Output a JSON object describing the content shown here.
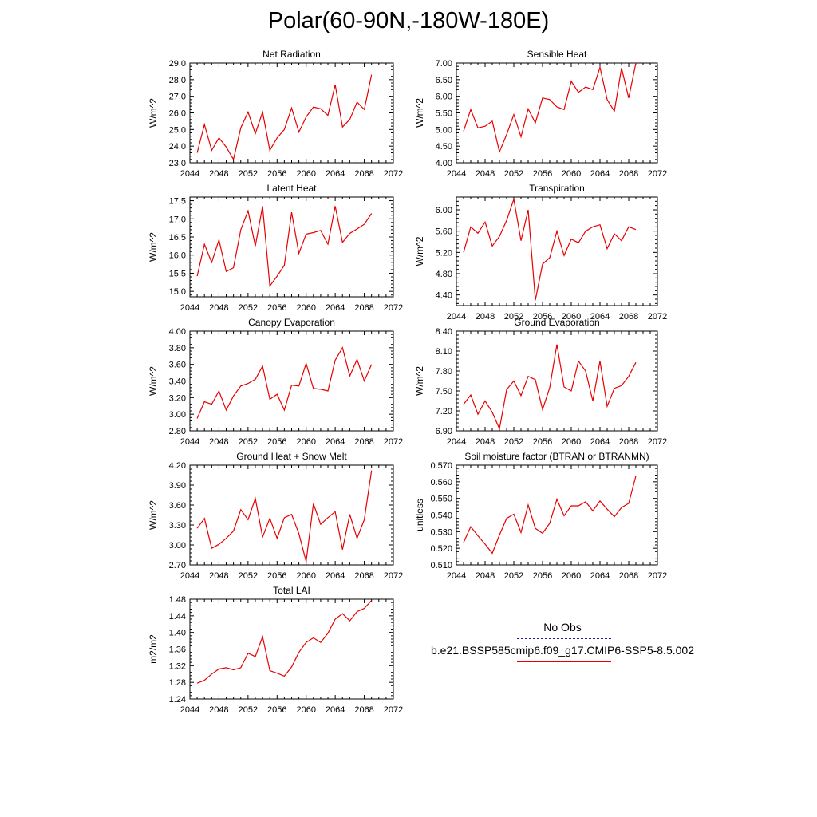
{
  "title": "Polar(60-90N,-180W-180E)",
  "legend": {
    "entries": [
      {
        "label": "No Obs",
        "color": "#1a1aa6",
        "style": "dashed"
      },
      {
        "label": "b.e21.BSSP585cmip6.f09_g17.CMIP6-SSP5-8.5.002",
        "color": "#e80000",
        "style": "solid"
      }
    ]
  },
  "chart_data": [
    {
      "type": "line",
      "title": "Net Radiation",
      "ylabel": "W/m^2",
      "xlim": [
        2044,
        2072
      ],
      "ylim": [
        23.0,
        29.0
      ],
      "xticks": [
        "2044",
        "2048",
        "2052",
        "2056",
        "2060",
        "2064",
        "2068",
        "2072"
      ],
      "yticks": [
        "23.0",
        "24.0",
        "25.0",
        "26.0",
        "27.0",
        "28.0",
        "29.0"
      ],
      "x": [
        2045,
        2046,
        2047,
        2048,
        2049,
        2050,
        2051,
        2052,
        2053,
        2054,
        2055,
        2056,
        2057,
        2058,
        2059,
        2060,
        2061,
        2062,
        2063,
        2064,
        2065,
        2066,
        2067,
        2068,
        2069
      ],
      "series": [
        {
          "color": "#e80000",
          "values": [
            23.6,
            25.3,
            23.75,
            24.5,
            23.95,
            23.2,
            25.1,
            26.05,
            24.75,
            26.05,
            23.75,
            24.5,
            25.0,
            26.3,
            24.85,
            25.75,
            26.35,
            26.25,
            25.85,
            27.7,
            25.15,
            25.6,
            26.65,
            26.2,
            28.3
          ]
        }
      ]
    },
    {
      "type": "line",
      "title": "Sensible Heat",
      "ylabel": "W/m^2",
      "xlim": [
        2044,
        2072
      ],
      "ylim": [
        4.0,
        7.0
      ],
      "xticks": [
        "2044",
        "2048",
        "2052",
        "2056",
        "2060",
        "2064",
        "2068",
        "2072"
      ],
      "yticks": [
        "4.00",
        "4.50",
        "5.00",
        "5.50",
        "6.00",
        "6.50",
        "7.00"
      ],
      "x": [
        2045,
        2046,
        2047,
        2048,
        2049,
        2050,
        2051,
        2052,
        2053,
        2054,
        2055,
        2056,
        2057,
        2058,
        2059,
        2060,
        2061,
        2062,
        2063,
        2064,
        2065,
        2066,
        2067,
        2068,
        2069
      ],
      "series": [
        {
          "color": "#e80000",
          "values": [
            4.95,
            5.6,
            5.05,
            5.1,
            5.25,
            4.33,
            4.85,
            5.45,
            4.78,
            5.62,
            5.2,
            5.95,
            5.9,
            5.68,
            5.6,
            6.45,
            6.12,
            6.28,
            6.2,
            6.87,
            5.9,
            5.55,
            6.85,
            5.95,
            7.0
          ]
        }
      ]
    },
    {
      "type": "line",
      "title": "Latent Heat",
      "ylabel": "W/m^2",
      "xlim": [
        2044,
        2072
      ],
      "ylim": [
        14.85,
        17.6
      ],
      "xticks": [
        "2044",
        "2048",
        "2052",
        "2056",
        "2060",
        "2064",
        "2068",
        "2072"
      ],
      "yticks": [
        "15.0",
        "15.5",
        "16.0",
        "16.5",
        "17.0",
        "17.5"
      ],
      "x": [
        2045,
        2046,
        2047,
        2048,
        2049,
        2050,
        2051,
        2052,
        2053,
        2054,
        2055,
        2056,
        2057,
        2058,
        2059,
        2060,
        2061,
        2062,
        2063,
        2064,
        2065,
        2066,
        2067,
        2068,
        2069
      ],
      "series": [
        {
          "color": "#e80000",
          "values": [
            15.42,
            16.3,
            15.8,
            16.42,
            15.55,
            15.65,
            16.7,
            17.22,
            16.25,
            17.35,
            15.15,
            15.42,
            15.72,
            17.18,
            16.05,
            16.58,
            16.62,
            16.68,
            16.3,
            17.35,
            16.35,
            16.6,
            16.72,
            16.85,
            17.15
          ]
        }
      ]
    },
    {
      "type": "line",
      "title": "Transpiration",
      "ylabel": "W/m^2",
      "xlim": [
        2044,
        2072
      ],
      "ylim": [
        4.2,
        6.24
      ],
      "xticks": [
        "2044",
        "2048",
        "2052",
        "2056",
        "2060",
        "2064",
        "2068",
        "2072"
      ],
      "yticks": [
        "4.40",
        "4.80",
        "5.20",
        "5.60",
        "6.00"
      ],
      "x": [
        2045,
        2046,
        2047,
        2048,
        2049,
        2050,
        2051,
        2052,
        2053,
        2054,
        2055,
        2056,
        2057,
        2058,
        2059,
        2060,
        2061,
        2062,
        2063,
        2064,
        2065,
        2066,
        2067,
        2068,
        2069
      ],
      "series": [
        {
          "color": "#e80000",
          "values": [
            5.2,
            5.68,
            5.56,
            5.77,
            5.32,
            5.5,
            5.8,
            6.2,
            5.42,
            6.0,
            4.3,
            4.98,
            5.1,
            5.6,
            5.14,
            5.45,
            5.38,
            5.6,
            5.68,
            5.72,
            5.27,
            5.55,
            5.42,
            5.68,
            5.63
          ]
        }
      ]
    },
    {
      "type": "line",
      "title": "Canopy Evaporation",
      "ylabel": "W/m^2",
      "xlim": [
        2044,
        2072
      ],
      "ylim": [
        2.8,
        4.0
      ],
      "xticks": [
        "2044",
        "2048",
        "2052",
        "2056",
        "2060",
        "2064",
        "2068",
        "2072"
      ],
      "yticks": [
        "2.80",
        "3.00",
        "3.20",
        "3.40",
        "3.60",
        "3.80",
        "4.00"
      ],
      "x": [
        2045,
        2046,
        2047,
        2048,
        2049,
        2050,
        2051,
        2052,
        2053,
        2054,
        2055,
        2056,
        2057,
        2058,
        2059,
        2060,
        2061,
        2062,
        2063,
        2064,
        2065,
        2066,
        2067,
        2068,
        2069
      ],
      "series": [
        {
          "color": "#e80000",
          "values": [
            2.95,
            3.15,
            3.12,
            3.28,
            3.05,
            3.22,
            3.34,
            3.37,
            3.42,
            3.58,
            3.18,
            3.24,
            3.05,
            3.35,
            3.34,
            3.61,
            3.31,
            3.3,
            3.28,
            3.65,
            3.8,
            3.46,
            3.66,
            3.4,
            3.6
          ]
        }
      ]
    },
    {
      "type": "line",
      "title": "Ground Evaporation",
      "ylabel": "W/m^2",
      "xlim": [
        2044,
        2072
      ],
      "ylim": [
        6.9,
        8.4
      ],
      "xticks": [
        "2044",
        "2048",
        "2052",
        "2056",
        "2060",
        "2064",
        "2068",
        "2072"
      ],
      "yticks": [
        "6.90",
        "7.20",
        "7.50",
        "7.80",
        "8.10",
        "8.40"
      ],
      "x": [
        2045,
        2046,
        2047,
        2048,
        2049,
        2050,
        2051,
        2052,
        2053,
        2054,
        2055,
        2056,
        2057,
        2058,
        2059,
        2060,
        2061,
        2062,
        2063,
        2064,
        2065,
        2066,
        2067,
        2068,
        2069
      ],
      "series": [
        {
          "color": "#e80000",
          "values": [
            7.3,
            7.44,
            7.15,
            7.35,
            7.18,
            6.93,
            7.52,
            7.65,
            7.43,
            7.72,
            7.67,
            7.22,
            7.55,
            8.2,
            7.56,
            7.5,
            7.95,
            7.8,
            7.35,
            7.95,
            7.27,
            7.54,
            7.58,
            7.72,
            7.93
          ]
        }
      ]
    },
    {
      "type": "line",
      "title": "Ground Heat + Snow Melt",
      "ylabel": "W/m^2",
      "xlim": [
        2044,
        2072
      ],
      "ylim": [
        2.7,
        4.2
      ],
      "xticks": [
        "2044",
        "2048",
        "2052",
        "2056",
        "2060",
        "2064",
        "2068",
        "2072"
      ],
      "yticks": [
        "2.70",
        "3.00",
        "3.30",
        "3.60",
        "3.90",
        "4.20"
      ],
      "x": [
        2045,
        2046,
        2047,
        2048,
        2049,
        2050,
        2051,
        2052,
        2053,
        2054,
        2055,
        2056,
        2057,
        2058,
        2059,
        2060,
        2061,
        2062,
        2063,
        2064,
        2065,
        2066,
        2067,
        2068,
        2069
      ],
      "series": [
        {
          "color": "#e80000",
          "values": [
            3.25,
            3.4,
            2.95,
            3.01,
            3.1,
            3.21,
            3.53,
            3.38,
            3.7,
            3.12,
            3.4,
            3.1,
            3.41,
            3.46,
            3.17,
            2.75,
            3.62,
            3.31,
            3.41,
            3.5,
            2.93,
            3.46,
            3.1,
            3.38,
            4.12
          ]
        }
      ]
    },
    {
      "type": "line",
      "title": "Soil moisture factor (BTRAN or BTRANMN)",
      "ylabel": "unitless",
      "xlim": [
        2044,
        2072
      ],
      "ylim": [
        0.51,
        0.57
      ],
      "xticks": [
        "2044",
        "2048",
        "2052",
        "2056",
        "2060",
        "2064",
        "2068",
        "2072"
      ],
      "yticks": [
        "0.510",
        "0.520",
        "0.530",
        "0.540",
        "0.550",
        "0.560",
        "0.570"
      ],
      "x": [
        2045,
        2046,
        2047,
        2048,
        2049,
        2050,
        2051,
        2052,
        2053,
        2054,
        2055,
        2056,
        2057,
        2058,
        2059,
        2060,
        2061,
        2062,
        2063,
        2064,
        2065,
        2066,
        2067,
        2068,
        2069
      ],
      "series": [
        {
          "color": "#e80000",
          "values": [
            0.5235,
            0.533,
            0.5275,
            0.5225,
            0.517,
            0.528,
            0.538,
            0.5405,
            0.5295,
            0.546,
            0.532,
            0.529,
            0.535,
            0.5495,
            0.5395,
            0.5455,
            0.5455,
            0.548,
            0.5425,
            0.5485,
            0.5435,
            0.539,
            0.5445,
            0.547,
            0.5635
          ]
        }
      ]
    },
    {
      "type": "line",
      "title": "Total LAI",
      "ylabel": "m2/m2",
      "xlim": [
        2044,
        2072
      ],
      "ylim": [
        1.24,
        1.48
      ],
      "xticks": [
        "2044",
        "2048",
        "2052",
        "2056",
        "2060",
        "2064",
        "2068",
        "2072"
      ],
      "yticks": [
        "1.24",
        "1.28",
        "1.32",
        "1.36",
        "1.40",
        "1.44",
        "1.48"
      ],
      "x": [
        2045,
        2046,
        2047,
        2048,
        2049,
        2050,
        2051,
        2052,
        2053,
        2054,
        2055,
        2056,
        2057,
        2058,
        2059,
        2060,
        2061,
        2062,
        2063,
        2064,
        2065,
        2066,
        2067,
        2068,
        2069
      ],
      "series": [
        {
          "color": "#e80000",
          "values": [
            1.278,
            1.285,
            1.3,
            1.312,
            1.315,
            1.31,
            1.315,
            1.35,
            1.342,
            1.39,
            1.308,
            1.302,
            1.295,
            1.317,
            1.352,
            1.376,
            1.387,
            1.376,
            1.398,
            1.432,
            1.445,
            1.428,
            1.45,
            1.458,
            1.477
          ]
        }
      ]
    }
  ]
}
